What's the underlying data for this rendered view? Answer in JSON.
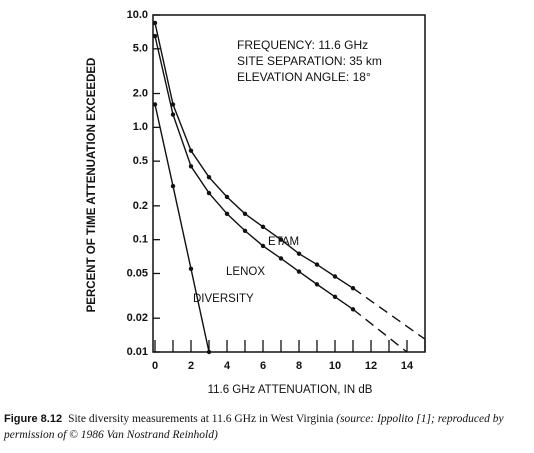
{
  "chart_data": {
    "type": "line",
    "annotation": [
      "FREQUENCY: 11.6 GHz",
      "SITE SEPARATION: 35 km",
      "ELEVATION ANGLE: 18°"
    ],
    "x_label": "11.6 GHz ATTENUATION, IN dB",
    "y_label": "PERCENT OF TIME ATTENUATION EXCEEDED",
    "xlim": [
      0,
      15
    ],
    "xticks": [
      0,
      2,
      4,
      6,
      8,
      10,
      12,
      14
    ],
    "xminor": [
      1,
      3,
      5,
      7,
      9,
      11,
      13,
      15
    ],
    "ylim": [
      0.01,
      10
    ],
    "log_y": true,
    "yticks": [
      {
        "value": 10,
        "label": "10.0"
      },
      {
        "value": 5,
        "label": "5.0"
      },
      {
        "value": 2,
        "label": "2.0"
      },
      {
        "value": 1,
        "label": "1.0"
      },
      0.5,
      0.2,
      0.1,
      0.05,
      0.02,
      0.01
    ],
    "color": "#111111",
    "series": [
      {
        "name": "ETAM",
        "x": [
          0,
          1,
          2,
          3,
          4,
          5,
          6,
          7,
          8,
          9,
          10,
          11,
          15
        ],
        "values": [
          8.5,
          1.6,
          0.62,
          0.36,
          0.24,
          0.17,
          0.13,
          0.1,
          0.075,
          0.06,
          0.047,
          0.037,
          0.013
        ],
        "dash_from_x": 11
      },
      {
        "name": "LENOX",
        "x": [
          0,
          1,
          2,
          3,
          4,
          5,
          6,
          7,
          8,
          9,
          10,
          11,
          14
        ],
        "values": [
          6.5,
          1.3,
          0.45,
          0.26,
          0.17,
          0.12,
          0.088,
          0.068,
          0.052,
          0.04,
          0.031,
          0.024,
          0.01
        ],
        "dash_from_x": 11
      },
      {
        "name": "DIVERSITY",
        "x": [
          0,
          1,
          2,
          3
        ],
        "values": [
          1.6,
          0.3,
          0.055,
          0.01
        ],
        "dash_from_x": 3
      }
    ]
  },
  "caption": {
    "label": "Figure 8.12",
    "text": "Site diversity measurements at 11.6 GHz in West Virginia",
    "source": "(source: Ippolito [1]; reproduced by permission of © 1986 Van Nostrand Reinhold)"
  }
}
